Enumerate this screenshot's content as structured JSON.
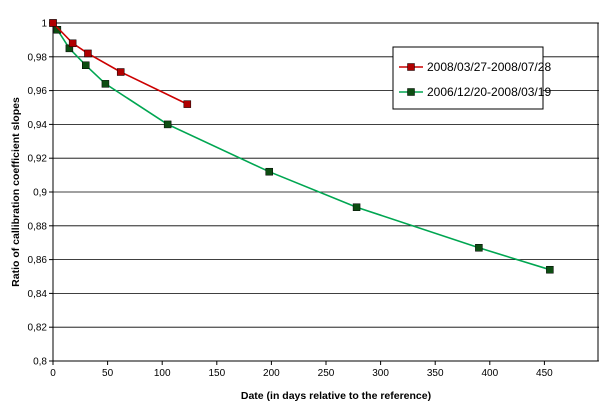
{
  "chart_data": {
    "type": "line",
    "title": "",
    "xlabel": "Date (in days relative to the reference)",
    "ylabel": "Ratio of callibration coefficient slopes",
    "xlim": [
      0,
      500
    ],
    "ylim": [
      0.8,
      1.0
    ],
    "x_ticks": [
      0,
      50,
      100,
      150,
      200,
      250,
      300,
      350,
      400,
      450
    ],
    "x_tick_labels": [
      "0",
      "50",
      "100",
      "150",
      "200",
      "250",
      "300",
      "350",
      "400",
      "450"
    ],
    "y_ticks": [
      0.8,
      0.82,
      0.84,
      0.86,
      0.88,
      0.9,
      0.92,
      0.94,
      0.96,
      0.98,
      1.0
    ],
    "y_tick_labels": [
      "0,8",
      "0,82",
      "0,84",
      "0,86",
      "0,88",
      "0,9",
      "0,92",
      "0,94",
      "0,96",
      "0,98",
      "1"
    ],
    "grid": "horizontal",
    "legend_position": "top-right",
    "series": [
      {
        "name": "2008/03/27-2008/07/28",
        "color": "#cc0000",
        "marker_color": "#b00000",
        "x": [
          0,
          18,
          32,
          62,
          123
        ],
        "y": [
          1.0,
          0.988,
          0.982,
          0.971,
          0.952
        ]
      },
      {
        "name": "2006/12/20-2008/03/19",
        "color": "#00a651",
        "marker_color": "#0d4d12",
        "x": [
          0,
          4,
          15,
          30,
          48,
          105,
          198,
          278,
          390,
          455
        ],
        "y": [
          1.0,
          0.996,
          0.985,
          0.975,
          0.964,
          0.94,
          0.912,
          0.891,
          0.867,
          0.854
        ]
      }
    ]
  }
}
